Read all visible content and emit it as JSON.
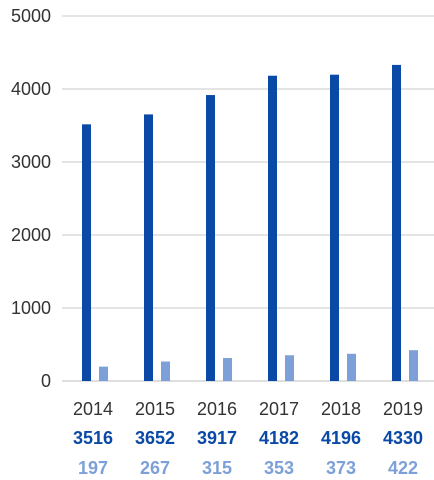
{
  "chart_data": {
    "type": "bar",
    "categories": [
      "2014",
      "2015",
      "2016",
      "2017",
      "2018",
      "2019"
    ],
    "series": [
      {
        "values": [
          3516,
          3652,
          3917,
          4182,
          4196,
          4330
        ],
        "color": "#0a4aa6"
      },
      {
        "values": [
          197,
          267,
          315,
          353,
          373,
          422
        ],
        "color": "#7ea0d8"
      }
    ],
    "yticks": [
      "0",
      "1000",
      "2000",
      "3000",
      "4000",
      "5000"
    ],
    "ylim": [
      0,
      5000
    ],
    "grid": true,
    "data_table_rows": [
      {
        "values": [
          "3516",
          "3652",
          "3917",
          "4182",
          "4196",
          "4330"
        ],
        "color": "#0a4aa6"
      },
      {
        "values": [
          "197",
          "267",
          "315",
          "353",
          "373",
          "422"
        ],
        "color": "#7ea0d8"
      }
    ],
    "title": "",
    "xlabel": "",
    "ylabel": ""
  }
}
